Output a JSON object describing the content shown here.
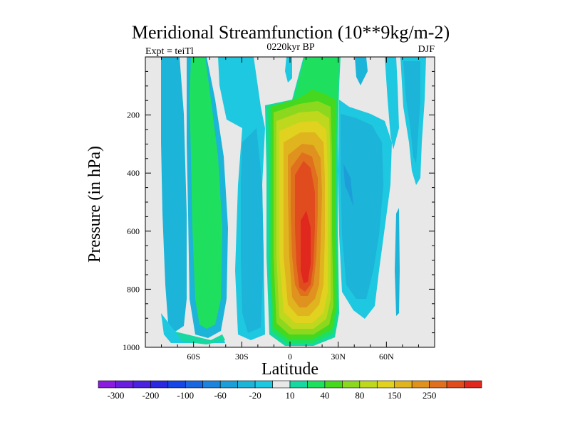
{
  "chart_data": {
    "type": "heatmap",
    "title": "Meridional Streamfunction (10**9kg/m-2)",
    "subtitle_left": "Expt = teiTl",
    "subtitle_center": "0220kyr BP",
    "subtitle_right": "DJF",
    "xlabel": "Latitude",
    "ylabel": "Pressure (in hPa)",
    "x_range": [
      -90,
      90
    ],
    "y_range": [
      0,
      1000
    ],
    "y_inverted": true,
    "x_ticks": [
      {
        "value": -60,
        "label": "60S"
      },
      {
        "value": -30,
        "label": "30S"
      },
      {
        "value": 0,
        "label": "0"
      },
      {
        "value": 30,
        "label": "30N"
      },
      {
        "value": 60,
        "label": "60N"
      }
    ],
    "y_ticks": [
      {
        "value": 200,
        "label": "200"
      },
      {
        "value": 400,
        "label": "400"
      },
      {
        "value": 600,
        "label": "600"
      },
      {
        "value": 800,
        "label": "800"
      },
      {
        "value": 1000,
        "label": "1000"
      }
    ],
    "background_color": "#e8e8e8",
    "colorbar": {
      "colors": [
        "#8a1ce0",
        "#6a1ee0",
        "#4a22e0",
        "#2a28e0",
        "#1646e6",
        "#1a66e0",
        "#1c84dc",
        "#1c9ed8",
        "#1cb4d8",
        "#1ec8e0",
        "#e8e8e8",
        "#16d8a0",
        "#1ee05e",
        "#46d81e",
        "#8cd81e",
        "#bed81e",
        "#e0d21e",
        "#e0b41e",
        "#e0921e",
        "#e0701e",
        "#e04c1e",
        "#e0281e"
      ],
      "labels": [
        {
          "after_box": 1,
          "text": "-300"
        },
        {
          "after_box": 3,
          "text": "-200"
        },
        {
          "after_box": 5,
          "text": "-100"
        },
        {
          "after_box": 7,
          "text": "-60"
        },
        {
          "after_box": 9,
          "text": "-20"
        },
        {
          "after_box": 11,
          "text": "10"
        },
        {
          "after_box": 13,
          "text": "40"
        },
        {
          "after_box": 15,
          "text": "80"
        },
        {
          "after_box": 17,
          "text": "150"
        },
        {
          "after_box": 19,
          "text": "250"
        }
      ]
    },
    "field_bands": [
      {
        "name": "band-70S",
        "color": "#1cb4d8",
        "lat": [
          -74,
          -74,
          -76,
          -78,
          -78,
          -77,
          -73,
          -71,
          -70,
          -69,
          -69,
          -70,
          -70,
          -69,
          -68,
          -66,
          -66,
          -65,
          -66,
          -67,
          -68,
          -70,
          -73,
          -75,
          -73,
          -71,
          -72,
          -72,
          -69,
          -69,
          -69
        ]
      },
      {
        "name": "band-70S-inner",
        "color": "#1ec8e0",
        "lat": [
          -73,
          -73,
          -75,
          -77,
          -77,
          -76,
          -73,
          -71,
          -70,
          -69,
          -69,
          -70,
          -70,
          -69,
          -68,
          -67,
          -66,
          -66,
          -67,
          -68,
          -69,
          -71,
          -73,
          -74,
          -73,
          -71,
          -72,
          -72,
          -70,
          -70,
          -70
        ]
      },
      {
        "name": "band-50S",
        "color": "#1ec8e0",
        "lat": [
          -58,
          -58,
          -60,
          -62,
          -61,
          -61,
          -62,
          -61,
          -61,
          -59,
          -59,
          -60,
          -61,
          -62,
          -62,
          -61,
          -61,
          -62,
          -60,
          -60,
          -59,
          -59,
          -60,
          -59,
          -58,
          -58,
          -57,
          -57,
          -55,
          -54,
          -54
        ]
      },
      {
        "name": "band-50S-green",
        "color": "#1ee05e",
        "lat": [
          -56,
          -56,
          -59,
          -61,
          -60,
          -60,
          -61,
          -60,
          -60,
          -58,
          -58,
          -59,
          -60,
          -61,
          -61,
          -60,
          -60,
          -61,
          -59,
          -59,
          -58,
          -58,
          -58,
          -57,
          -56,
          -56,
          -55,
          -55,
          -53,
          -52,
          -52
        ]
      },
      {
        "name": "band-25S",
        "color": "#1ec8e0",
        "lat": [
          -32,
          -32,
          -32,
          -32,
          -32,
          -33,
          -30,
          -30,
          -29,
          -29,
          -28,
          -28,
          -28,
          -28,
          -27,
          -28,
          -27,
          -28,
          -28,
          -27,
          -27,
          -26,
          -26,
          -25,
          -24,
          -24,
          -23,
          -23,
          -23,
          -24,
          -24
        ]
      },
      {
        "name": "band-eq-green",
        "color": "#1ee05e",
        "lat": [
          -10,
          -10,
          -12,
          -14,
          -13,
          -14,
          -12,
          -12,
          -11,
          -11,
          -12,
          -12,
          -11,
          -10,
          -9,
          -9,
          -8,
          -8,
          -8,
          -8,
          -8,
          -8,
          -8,
          -8,
          -8,
          -8,
          -7,
          -7,
          -7,
          -7,
          -7
        ]
      },
      {
        "name": "band-eq-yellow",
        "color": "#bed81e",
        "lat": [
          -3,
          -3,
          -5,
          -7,
          -7,
          -8,
          -8,
          -9,
          -10,
          -10,
          -10,
          -10,
          -10,
          -10,
          -10,
          -10,
          -10,
          -9,
          -8,
          -8,
          -7,
          -7,
          -6,
          -6,
          -5,
          -4,
          -3,
          -2,
          -1,
          0,
          0
        ]
      },
      {
        "name": "band-eq-orange",
        "color": "#e0b41e",
        "lat": [
          1,
          1,
          1,
          0,
          -1,
          -3,
          -5,
          -6,
          -7,
          -8,
          -8,
          -8,
          -7,
          -7,
          -7,
          -7,
          -6,
          -6,
          -6,
          -6,
          -6,
          -5,
          -5,
          -4,
          -3,
          -2,
          -1,
          0,
          1,
          2,
          2
        ]
      },
      {
        "name": "band-eq-red",
        "color": "#e04c1e",
        "lat": [
          5,
          5,
          5,
          5,
          5,
          5,
          3,
          2,
          1,
          0,
          0,
          0,
          -1,
          -1,
          -1,
          -1,
          -1,
          -1,
          -1,
          -1,
          -1,
          0,
          0,
          0,
          1,
          2,
          3,
          4,
          5,
          5,
          5
        ]
      },
      {
        "name": "band-eq-redcore",
        "color": "#e0281e",
        "lat": [
          5,
          5,
          5,
          5,
          5,
          5,
          5,
          5,
          5,
          5,
          5,
          5,
          5,
          5,
          5,
          5,
          4,
          3,
          3,
          3,
          3,
          3,
          4,
          5,
          5,
          5,
          5,
          5,
          5,
          5,
          5
        ]
      }
    ]
  }
}
